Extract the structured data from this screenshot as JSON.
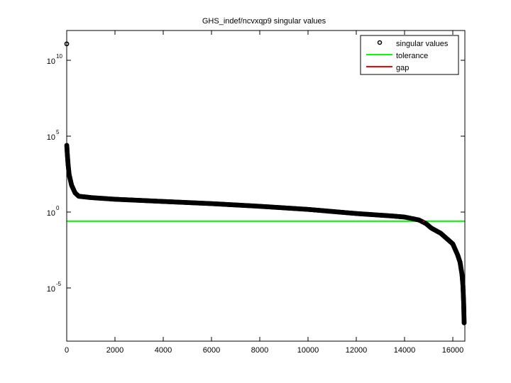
{
  "window": {
    "background": "#ffffff"
  },
  "chart_data": {
    "type": "scatter",
    "title": "GHS_indef/ncvxqp9 singular values",
    "xlabel": "",
    "ylabel": "",
    "yscale": "log",
    "xlim": [
      0,
      16500
    ],
    "ylim_log10": [
      -8.3,
      11.5
    ],
    "grid": false,
    "legend_position": "upper right",
    "x_ticks": [
      0,
      2000,
      4000,
      6000,
      8000,
      10000,
      12000,
      14000,
      16000
    ],
    "x_tick_labels": [
      "0",
      "2000",
      "4000",
      "6000",
      "8000",
      "10000",
      "12000",
      "14000",
      "16000"
    ],
    "y_ticks_log10": [
      10,
      5,
      0,
      -5
    ],
    "y_tick_labels": [
      {
        "base": "10",
        "exp": "10"
      },
      {
        "base": "10",
        "exp": "5"
      },
      {
        "base": "10",
        "exp": "0"
      },
      {
        "base": "10",
        "exp": "-5"
      }
    ],
    "legend": [
      {
        "label": "singular values",
        "marker": "circle",
        "color": "#000000"
      },
      {
        "label": "tolerance",
        "marker": "line",
        "color": "#00ff00"
      },
      {
        "label": "gap",
        "marker": "line",
        "color": "#ff0000"
      }
    ],
    "series": [
      {
        "name": "singular values",
        "color": "#000000",
        "points_approx": [
          {
            "x": 1,
            "y": 120000000000.0
          },
          {
            "x": 2,
            "y": 25000.0
          },
          {
            "x": 10,
            "y": 15000.0
          },
          {
            "x": 30,
            "y": 5000.0
          },
          {
            "x": 60,
            "y": 1200.0
          },
          {
            "x": 100,
            "y": 300
          },
          {
            "x": 200,
            "y": 60
          },
          {
            "x": 350,
            "y": 18
          },
          {
            "x": 500,
            "y": 11
          },
          {
            "x": 1000,
            "y": 9
          },
          {
            "x": 2000,
            "y": 7
          },
          {
            "x": 4000,
            "y": 5
          },
          {
            "x": 6000,
            "y": 3.6
          },
          {
            "x": 8000,
            "y": 2.4
          },
          {
            "x": 10000,
            "y": 1.5
          },
          {
            "x": 12000,
            "y": 0.8
          },
          {
            "x": 13500,
            "y": 0.55
          },
          {
            "x": 14000,
            "y": 0.47
          },
          {
            "x": 14600,
            "y": 0.3
          },
          {
            "x": 14900,
            "y": 0.17
          },
          {
            "x": 15100,
            "y": 0.09
          },
          {
            "x": 15500,
            "y": 0.04
          },
          {
            "x": 16000,
            "y": 0.008
          },
          {
            "x": 16200,
            "y": 0.0015
          },
          {
            "x": 16300,
            "y": 0.0005
          },
          {
            "x": 16380,
            "y": 8e-05
          },
          {
            "x": 16420,
            "y": 1.5e-05
          },
          {
            "x": 16450,
            "y": 1e-06
          },
          {
            "x": 16470,
            "y": 5e-08
          }
        ]
      },
      {
        "name": "tolerance",
        "color": "#00ff00",
        "y": 0.25
      },
      {
        "name": "gap",
        "color": "#ff0000",
        "x": 14800,
        "y": 0.25
      }
    ]
  }
}
